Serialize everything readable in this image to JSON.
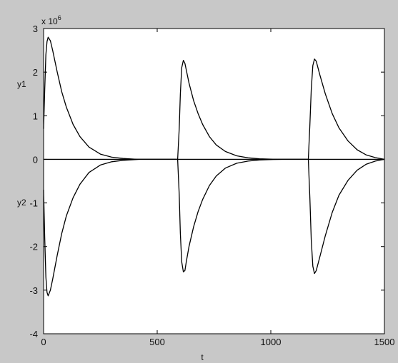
{
  "chart_data": {
    "type": "line",
    "title": "",
    "xlabel": "t",
    "ylabel_top": "y1",
    "ylabel_bottom": "y2",
    "y_exponent_label": "x 10",
    "y_exponent_power": "6",
    "xlim": [
      0,
      1500
    ],
    "ylim": [
      -4,
      3
    ],
    "x_ticks": [
      0,
      500,
      1000,
      1500
    ],
    "x_tick_labels": [
      "0",
      "500",
      "1000",
      "1500"
    ],
    "y_ticks": [
      3,
      2,
      1,
      0,
      -1,
      -2,
      -3,
      -4
    ],
    "y_tick_labels": [
      "3",
      "2",
      "1",
      "0",
      "-1",
      "-2",
      "-3",
      "-4"
    ],
    "grid": false,
    "legend": "none",
    "colors": {
      "line": "#000000",
      "axes_bg": "#ffffff",
      "figure_bg": "#c8c8c8"
    },
    "series": [
      {
        "x": [
          0,
          5,
          10,
          15,
          20,
          30,
          40,
          60,
          80,
          100,
          130,
          160,
          200,
          250,
          300,
          350,
          400,
          420,
          470,
          590,
          597,
          602,
          608,
          615,
          622,
          628,
          640,
          660,
          680,
          700,
          730,
          760,
          800,
          850,
          900,
          950,
          1000,
          1050,
          1100,
          1165,
          1172,
          1178,
          1185,
          1192,
          1200,
          1215,
          1240,
          1270,
          1300,
          1340,
          1380,
          1420,
          1460,
          1500
        ],
        "values": [
          0.7,
          1.6,
          2.4,
          2.7,
          2.8,
          2.72,
          2.5,
          2.0,
          1.55,
          1.2,
          0.8,
          0.52,
          0.28,
          0.12,
          0.05,
          0.02,
          0.005,
          0,
          0,
          0,
          0.7,
          1.5,
          2.1,
          2.27,
          2.2,
          2.05,
          1.75,
          1.35,
          1.05,
          0.8,
          0.52,
          0.33,
          0.18,
          0.08,
          0.035,
          0.012,
          0.003,
          0,
          0,
          0,
          0.8,
          1.6,
          2.15,
          2.3,
          2.25,
          1.95,
          1.5,
          1.05,
          0.72,
          0.42,
          0.22,
          0.1,
          0.04,
          0
        ]
      },
      {
        "x": [
          0,
          5,
          10,
          15,
          20,
          30,
          40,
          60,
          80,
          100,
          130,
          160,
          200,
          250,
          300,
          350,
          400,
          420,
          470,
          590,
          597,
          602,
          608,
          615,
          622,
          628,
          640,
          660,
          680,
          700,
          730,
          760,
          800,
          850,
          900,
          950,
          1000,
          1050,
          1100,
          1165,
          1172,
          1178,
          1185,
          1192,
          1200,
          1215,
          1240,
          1270,
          1300,
          1340,
          1380,
          1420,
          1460,
          1500
        ],
        "values": [
          -0.7,
          -1.8,
          -2.7,
          -3.05,
          -3.13,
          -3.0,
          -2.75,
          -2.2,
          -1.7,
          -1.3,
          -0.88,
          -0.57,
          -0.3,
          -0.13,
          -0.055,
          -0.022,
          -0.006,
          0,
          0,
          0,
          -0.8,
          -1.7,
          -2.35,
          -2.58,
          -2.55,
          -2.35,
          -2.0,
          -1.55,
          -1.2,
          -0.92,
          -0.6,
          -0.38,
          -0.2,
          -0.09,
          -0.04,
          -0.014,
          -0.004,
          0,
          0,
          0,
          -0.9,
          -1.85,
          -2.45,
          -2.62,
          -2.55,
          -2.25,
          -1.75,
          -1.22,
          -0.82,
          -0.48,
          -0.25,
          -0.11,
          -0.04,
          0
        ]
      }
    ]
  }
}
